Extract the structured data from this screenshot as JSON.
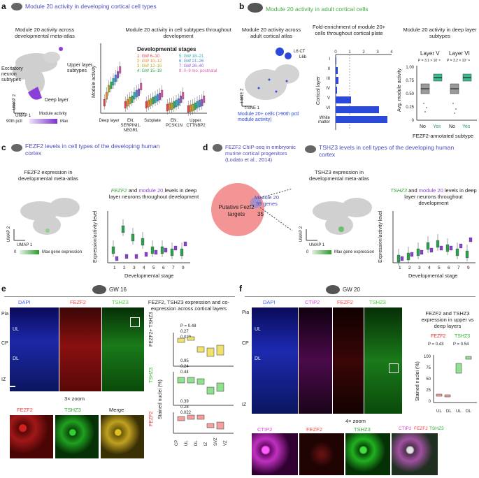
{
  "a": {
    "label": "a",
    "title": "Module 20 activity in developing cortical cell types",
    "umap_title": "Module 20 activity across developmental meta-atlas",
    "umap_annot": {
      "upper": "Upper layer subtypes",
      "excit": "Excitatory neuron subtypes",
      "deep": "Deep layer",
      "u2": "UMAP 2",
      "u1": "UMAP 1"
    },
    "legend": {
      "title": "Module activity",
      "low": "90th pctl",
      "high": "Max"
    },
    "box_title": "Module 20 activity in cell subtypes throughout development",
    "ylabel": "Module activity",
    "stage_title": "Developmental stages",
    "stages": [
      {
        "name": "1: GW 6–10",
        "color": "#e0464e"
      },
      {
        "name": "2: GW 10–12",
        "color": "#f08a1c"
      },
      {
        "name": "3: GW 12–15",
        "color": "#b5a82a"
      },
      {
        "name": "4: GW 15–18",
        "color": "#2ea84a"
      },
      {
        "name": "5: GW 18–21",
        "color": "#24b0b8"
      },
      {
        "name": "6: GW 21–26",
        "color": "#3f8ad6"
      },
      {
        "name": "7: GW 26–40",
        "color": "#8e5bd0"
      },
      {
        "name": "8: 0–9 mo. postnatal",
        "color": "#e058b0"
      }
    ],
    "groups": [
      "Deep layer",
      "EN. SERPINI1. NEGR1",
      "Subplate",
      "EN. PCSK1N",
      "Upper. CTTNBP2"
    ],
    "chart_data": {
      "type": "box",
      "title": "Module 20 activity in cell subtypes throughout development",
      "ylabel": "Module activity",
      "ylim": [
        0,
        1
      ],
      "categories": [
        "Deep layer",
        "EN. SERPINI1. NEGR1",
        "Subplate",
        "EN. PCSK1N",
        "Upper. CTTNBP2"
      ],
      "series_medians": [
        [
          0.15,
          0.25,
          0.35,
          0.4,
          0.45,
          0.5,
          0.55,
          0.62
        ],
        [
          0.12,
          0.15,
          0.18,
          0.2,
          0.25,
          0.28,
          0.3,
          0.38
        ],
        [
          0.12,
          0.14,
          0.16,
          0.18,
          0.2,
          0.22,
          0.24,
          0.28
        ],
        [
          0.08,
          0.1,
          0.1,
          0.12,
          0.14,
          0.16,
          0.2,
          0.25
        ],
        [
          0.06,
          0.07,
          0.08,
          0.1,
          0.12,
          0.14,
          0.15,
          0.2
        ]
      ]
    }
  },
  "b": {
    "label": "b",
    "title": "Module 20 activity in adult cortical cells",
    "tsne_title": "Module 20 activity across adult cortical atlas",
    "tsne_annot": {
      "ct": "L6 CT",
      "l6b": "L6b",
      "t2": "t-SNE 2",
      "t1": "t-SNE 1",
      "note": "Module 20+ cells (>90th pctl module activity)"
    },
    "fold_title": "Fold-enrichment of module 20+ cells throughout cortical plate",
    "fold_ylabel": "Cortical layer",
    "chart_data": {
      "type": "bar",
      "orientation": "horizontal",
      "categories": [
        "I",
        "II",
        "III",
        "IV",
        "V",
        "VI",
        "White matter"
      ],
      "values": [
        0.05,
        0.15,
        0.2,
        0.1,
        1.1,
        3.1,
        3.7
      ],
      "xticks": [
        "0",
        "1",
        "2",
        "3",
        "4"
      ],
      "xlim": [
        0,
        4
      ]
    },
    "deep_title": "Module 20 activity in deep layer subtypes",
    "layers": [
      {
        "name": "Layer V",
        "p": "P = 3.1 × 10⁻⁸"
      },
      {
        "name": "Layer VI",
        "p": "P = 3.2 × 10⁻¹¹"
      }
    ],
    "deep_ylabel": "Avg. module activity",
    "deep_yticks": [
      "1.00",
      "0.75",
      "0.50",
      "0.25",
      "0"
    ],
    "deep_xlabels": [
      "No",
      "Yes"
    ],
    "deep_xtitle": "FEZF2-annotated subtype"
  },
  "c": {
    "label": "c",
    "title": "FEZF2 levels in cell types of the developing human cortex",
    "umap_title": "FEZF2 expression in developmental meta-atlas",
    "gene": "FEZF2",
    "umap_axes": {
      "u2": "UMAP 2",
      "u1": "UMAP 1"
    },
    "legend": {
      "low": "0",
      "high": "Max gene expression"
    },
    "box_title_gene": "FEZF2",
    "box_title_rest": "and",
    "box_title_mod": "module 20",
    "box_title_tail": "levels in deep layer neurons throughout development",
    "ylabel": "Expression/activity level",
    "xlabel": "Developmental stage",
    "xticks": [
      "1",
      "2",
      "3",
      "4",
      "5",
      "6",
      "7",
      "9"
    ]
  },
  "d": {
    "label": "d",
    "title": "FEZF2 ChIP-seq in embryonic murine cortical progenitors (Lodato et al., 2014)",
    "targets": "Putative Fezf2 targets",
    "module": "Module 20",
    "module_genes": "39 genes",
    "overlap": "35",
    "title2": "TSHZ3 levels in cell types of the developing human cortex",
    "umap_title": "TSHZ3 expression in developmental meta-atlas",
    "gene": "TSHZ3",
    "umap_axes": {
      "u2": "UMAP 2",
      "u1": "UMAP 1"
    },
    "legend": {
      "low": "0",
      "high": "Max gene expression"
    },
    "box_title_gene": "TSHZ3",
    "box_title_rest": "and",
    "box_title_mod": "module 20",
    "box_title_tail": "levels in deep layer neurons throughout development",
    "ylabel": "Expression/activity level",
    "xlabel": "Developmental stage",
    "xticks": [
      "1",
      "2",
      "3",
      "4",
      "5",
      "6",
      "7",
      "9"
    ]
  },
  "e": {
    "label": "e",
    "badge": "GW 16",
    "channels": {
      "dapi": "DAPI",
      "fezf2": "FEZF2",
      "tshz3": "TSHZ3"
    },
    "zones": {
      "pia": "Pia",
      "ul": "UL",
      "cp": "CP",
      "dl": "DL",
      "iz": "IZ"
    },
    "zoom": "3× zoom",
    "zoom_labels": {
      "fezf2": "FEZF2",
      "tshz3": "TSHZ3",
      "merge": "Merge"
    },
    "right_title": "FEZF2, TSHZ3 expression and co-expression across cortical layers",
    "y1": "FEZF2+ TSHZ3",
    "y2": "TSHZ3",
    "y3": "FEZF2",
    "ylabel": "Stained nuclei (%)",
    "p1": [
      "P = 0.48",
      "0.27",
      "0.029"
    ],
    "p2": [
      "0.95",
      "0.24",
      "0.44"
    ],
    "p3": [
      "0.39",
      "0.28",
      "0.022"
    ],
    "xcats": [
      "CP",
      "UL",
      "DL",
      "IZ",
      "SVZ",
      "VZ"
    ]
  },
  "f": {
    "label": "f",
    "badge": "GW 20",
    "channels": {
      "dapi": "DAPI",
      "ctip2": "CTIP2",
      "fezf2": "FEZF2",
      "tshz3": "TSHZ3"
    },
    "zones": {
      "pia": "Pia",
      "ul": "UL",
      "cp": "CP",
      "dl": "DL",
      "iz": "IZ"
    },
    "zoom": "4× zoom",
    "zoom_labels": {
      "ctip2": "CTIP2",
      "fezf2": "FEZF2",
      "tshz3": "TSHZ3",
      "m_ctip2": "CTIP2",
      "m_fezf2": "FEZF2",
      "m_tshz3": "TSHZ3"
    },
    "right_title": "FEZF2 and TSHZ3 expression in upper vs deep layers",
    "g1": "FEZF2",
    "g2": "TSHZ3",
    "p1": "P = 0.43",
    "p2": "P = 0.54",
    "ylabel": "Stained nuclei (%)",
    "yticks": [
      "100",
      "75",
      "50",
      "25",
      "0"
    ],
    "xcats": [
      "UL",
      "DL",
      "UL",
      "DL"
    ]
  }
}
